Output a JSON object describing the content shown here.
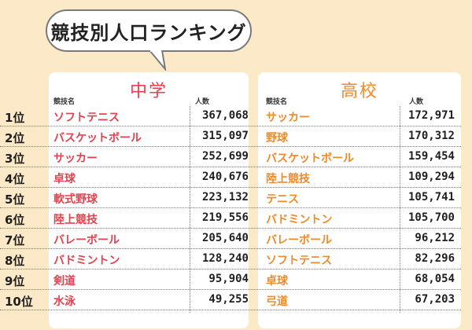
{
  "title": "競技別人口ランキング",
  "colors": {
    "background": "#fbe9c8",
    "junior_high_accent": "#e0424f",
    "high_school_accent": "#ee8a2a"
  },
  "columns": {
    "junior_high_heading": "中学",
    "high_school_heading": "高校",
    "sport_header": "競技名",
    "count_header": "人数"
  },
  "rows": [
    {
      "rank": "1位",
      "jh_sport": "ソフトテニス",
      "jh_count": "367,068",
      "hs_sport": "サッカー",
      "hs_count": "172,971"
    },
    {
      "rank": "2位",
      "jh_sport": "バスケットボール",
      "jh_count": "315,097",
      "hs_sport": "野球",
      "hs_count": "170,312"
    },
    {
      "rank": "3位",
      "jh_sport": "サッカー",
      "jh_count": "252,699",
      "hs_sport": "バスケットボール",
      "hs_count": "159,454"
    },
    {
      "rank": "4位",
      "jh_sport": "卓球",
      "jh_count": "240,676",
      "hs_sport": "陸上競技",
      "hs_count": "109,294"
    },
    {
      "rank": "5位",
      "jh_sport": "軟式野球",
      "jh_count": "223,132",
      "hs_sport": "テニス",
      "hs_count": "105,741"
    },
    {
      "rank": "6位",
      "jh_sport": "陸上競技",
      "jh_count": "219,556",
      "hs_sport": "バドミントン",
      "hs_count": "105,700"
    },
    {
      "rank": "7位",
      "jh_sport": "バレーボール",
      "jh_count": "205,640",
      "hs_sport": "バレーボール",
      "hs_count": "96,212"
    },
    {
      "rank": "8位",
      "jh_sport": "バドミントン",
      "jh_count": "128,240",
      "hs_sport": "ソフトテニス",
      "hs_count": "82,296"
    },
    {
      "rank": "9位",
      "jh_sport": "剣道",
      "jh_count": "95,904",
      "hs_sport": "卓球",
      "hs_count": "68,054"
    },
    {
      "rank": "10位",
      "jh_sport": "水泳",
      "jh_count": "49,255",
      "hs_sport": "弓道",
      "hs_count": "67,203"
    }
  ]
}
